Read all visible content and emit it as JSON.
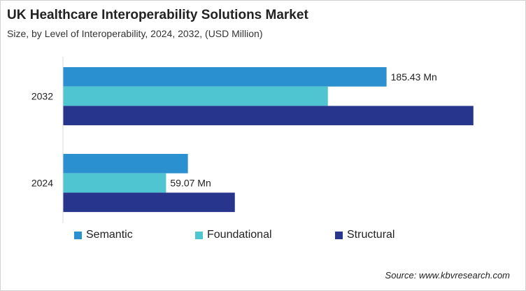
{
  "chart_data": {
    "type": "bar",
    "orientation": "horizontal",
    "title": "UK Healthcare Interoperability Solutions Market",
    "subtitle": "Size, by Level of Interoperability, 2024, 2032, (USD Million)",
    "categories": [
      "2032",
      "2024"
    ],
    "series": [
      {
        "name": "Semantic",
        "color": "#2a90cf",
        "values": [
          185.43,
          71.6
        ]
      },
      {
        "name": "Foundational",
        "color": "#4fc5d1",
        "values": [
          151.8,
          59.07
        ]
      },
      {
        "name": "Structural",
        "color": "#28358c",
        "values": [
          235.2,
          98.5
        ]
      }
    ],
    "data_labels": [
      {
        "category": "2032",
        "series": "Semantic",
        "text": "185.43 Mn"
      },
      {
        "category": "2024",
        "series": "Foundational",
        "text": "59.07 Mn"
      }
    ],
    "xlim": [
      0,
      240
    ],
    "grid": false,
    "x_axis_visible": false,
    "legend_position": "bottom"
  },
  "source": "Source: www.kbvresearch.com"
}
